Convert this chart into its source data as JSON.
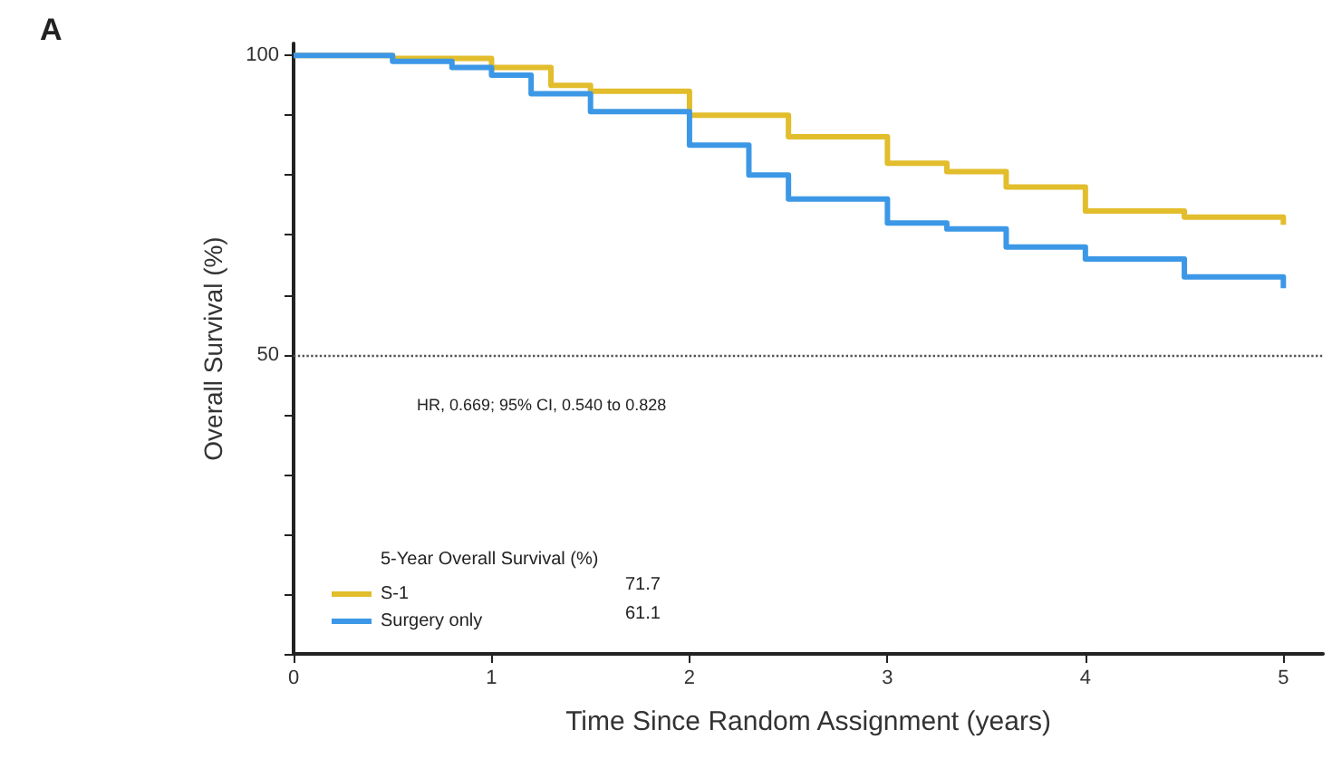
{
  "chart_data": {
    "type": "step",
    "xlabel": "Time Since Random Assignment (years)",
    "ylabel": "Overall Survival (%)",
    "legend_title": "5-Year Overall Survival (%)",
    "annotations": [
      "A",
      "HR, 0.669; 95% CI, 0.540 to 0.828",
      "71.7",
      "61.1"
    ],
    "xlim": [
      0,
      5.2
    ],
    "xticks": [
      0,
      1,
      2,
      3,
      4,
      5
    ],
    "ylim": [
      0,
      102
    ],
    "yticks": [
      {
        "value": 0,
        "label": null
      },
      {
        "value": 10,
        "label": null
      },
      {
        "value": 20,
        "label": null
      },
      {
        "value": 30,
        "label": null
      },
      {
        "value": 40,
        "label": null
      },
      50,
      {
        "value": 60,
        "label": null
      },
      {
        "value": 70,
        "label": null
      },
      {
        "value": 80,
        "label": null
      },
      {
        "value": 90,
        "label": null
      },
      100
    ],
    "ref_lines": [
      {
        "axis": "y",
        "value": 50,
        "color": "#555555",
        "line_style": "dotted"
      }
    ],
    "legend": "bottom left",
    "grid": false,
    "marker": "none",
    "series": [
      {
        "name": "S-1",
        "color": "#e2bd2c",
        "x": [
          0,
          0.5,
          1,
          1.3,
          1.5,
          2,
          2.5,
          3,
          3.3,
          3.6,
          4,
          4.5,
          5
        ],
        "values": [
          100,
          99.5,
          98,
          95,
          94,
          90,
          86.4,
          82,
          80.6,
          78,
          74,
          73,
          71.7
        ]
      },
      {
        "name": "Surgery only",
        "color": "#3c98e6",
        "x": [
          0,
          0.5,
          0.8,
          1,
          1.2,
          1.5,
          2,
          2.3,
          2.5,
          3,
          3.3,
          3.6,
          4,
          4.5,
          5
        ],
        "values": [
          100,
          99,
          98,
          96.7,
          93.6,
          90.6,
          85,
          80,
          76,
          72,
          71,
          68,
          66,
          63,
          61.1
        ]
      }
    ]
  }
}
